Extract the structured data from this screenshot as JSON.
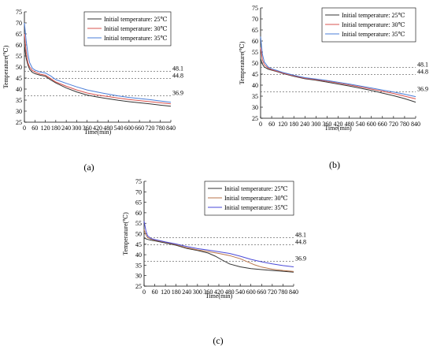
{
  "chart_data": [
    {
      "type": "line",
      "panel_label": "(a)",
      "xlabel": "Time(min)",
      "ylabel": "Temperature(℃)",
      "xlim": [
        0,
        840
      ],
      "ylim": [
        25,
        75
      ],
      "xticks": [
        0,
        60,
        120,
        180,
        240,
        300,
        360,
        420,
        480,
        540,
        600,
        660,
        720,
        780,
        840
      ],
      "yticks": [
        25,
        30,
        35,
        40,
        45,
        50,
        55,
        60,
        65,
        70,
        75
      ],
      "reference_lines": [
        {
          "y": 48.1,
          "label": "48.1"
        },
        {
          "y": 44.8,
          "label": "44.8"
        },
        {
          "y": 36.9,
          "label": "36.9"
        }
      ],
      "legend_position": "top-right",
      "series": [
        {
          "name": "Initial temperature: 25℃",
          "color": "#333333",
          "x": [
            0,
            10,
            20,
            30,
            45,
            60,
            90,
            120,
            150,
            180,
            240,
            300,
            360,
            420,
            480,
            540,
            600,
            660,
            720,
            780,
            840
          ],
          "y": [
            60,
            54,
            51,
            49,
            47.6,
            47,
            46.3,
            45.8,
            44.2,
            42.8,
            40.5,
            38.7,
            37.3,
            36.4,
            35.6,
            34.9,
            34.3,
            33.8,
            33.3,
            32.7,
            32.2
          ]
        },
        {
          "name": "Initial temperature: 30℃",
          "color": "#d9534f",
          "x": [
            0,
            10,
            20,
            30,
            45,
            60,
            90,
            120,
            150,
            180,
            240,
            300,
            360,
            420,
            480,
            540,
            600,
            660,
            720,
            780,
            840
          ],
          "y": [
            65,
            57,
            52,
            50,
            48.5,
            47.8,
            46.8,
            46.3,
            44.8,
            43.2,
            41.3,
            39.6,
            38.2,
            37.3,
            36.6,
            35.9,
            35.3,
            34.8,
            34.3,
            33.8,
            33.3
          ]
        },
        {
          "name": "Initial temperature: 35℃",
          "color": "#4a7dd8",
          "x": [
            0,
            10,
            20,
            30,
            45,
            60,
            90,
            120,
            150,
            180,
            240,
            300,
            360,
            420,
            480,
            540,
            600,
            660,
            720,
            780,
            840
          ],
          "y": [
            70,
            62,
            56,
            52,
            49.5,
            48.6,
            47.7,
            47.3,
            46,
            44.3,
            42.6,
            41,
            39.6,
            38.6,
            37.7,
            36.9,
            36.2,
            35.7,
            35.2,
            34.6,
            34
          ]
        }
      ]
    },
    {
      "type": "line",
      "panel_label": "(b)",
      "xlabel": "Time(min)",
      "ylabel": "Temperature(℃)",
      "xlim": [
        0,
        840
      ],
      "ylim": [
        25,
        75
      ],
      "xticks": [
        0,
        60,
        120,
        180,
        240,
        300,
        360,
        420,
        480,
        540,
        600,
        660,
        720,
        780,
        840
      ],
      "yticks": [
        25,
        30,
        35,
        40,
        45,
        50,
        55,
        60,
        65,
        70,
        75
      ],
      "reference_lines": [
        {
          "y": 48.1,
          "label": "48.1"
        },
        {
          "y": 44.8,
          "label": "44.8"
        },
        {
          "y": 36.9,
          "label": "36.9"
        }
      ],
      "legend_position": "top-right",
      "series": [
        {
          "name": "Initial temperature: 25℃",
          "color": "#333333",
          "x": [
            0,
            10,
            20,
            40,
            60,
            90,
            120,
            180,
            240,
            300,
            360,
            420,
            480,
            540,
            600,
            660,
            720,
            780,
            840
          ],
          "y": [
            52,
            49.5,
            48.2,
            47.3,
            46.8,
            46.1,
            45.3,
            44,
            42.9,
            42.2,
            41.4,
            40.5,
            39.6,
            38.6,
            37.6,
            36.4,
            35.2,
            33.9,
            32.3
          ]
        },
        {
          "name": "Initial temperature: 30℃",
          "color": "#d9534f",
          "x": [
            0,
            10,
            20,
            40,
            60,
            90,
            120,
            180,
            240,
            300,
            360,
            420,
            480,
            540,
            600,
            660,
            720,
            780,
            840
          ],
          "y": [
            57,
            51.5,
            49.3,
            47.8,
            47,
            46.3,
            45.5,
            44.2,
            43.1,
            42.5,
            41.8,
            41,
            40.1,
            39.2,
            38.2,
            37.2,
            36.2,
            35,
            33.8
          ]
        },
        {
          "name": "Initial temperature: 35℃",
          "color": "#4a7dd8",
          "x": [
            0,
            10,
            20,
            40,
            60,
            90,
            120,
            180,
            240,
            300,
            360,
            420,
            480,
            540,
            600,
            660,
            720,
            780,
            840
          ],
          "y": [
            62,
            54,
            50.5,
            48.3,
            47.4,
            46.6,
            45.8,
            44.5,
            43.4,
            42.8,
            42.1,
            41.3,
            40.5,
            39.6,
            38.7,
            37.8,
            36.9,
            35.9,
            34.8
          ]
        }
      ]
    },
    {
      "type": "line",
      "panel_label": "(c)",
      "xlabel": "Time(min)",
      "ylabel": "Temperature(℃)",
      "xlim": [
        0,
        840
      ],
      "ylim": [
        25,
        75
      ],
      "xticks": [
        0,
        60,
        120,
        180,
        240,
        300,
        360,
        420,
        480,
        540,
        600,
        660,
        720,
        780,
        840
      ],
      "yticks": [
        25,
        30,
        35,
        40,
        45,
        50,
        55,
        60,
        65,
        70,
        75
      ],
      "reference_lines": [
        {
          "y": 48.1,
          "label": "48.1"
        },
        {
          "y": 44.8,
          "label": "44.8"
        },
        {
          "y": 36.9,
          "label": "36.9"
        }
      ],
      "legend_position": "top-right",
      "series": [
        {
          "name": "Initial temperature: 25℃",
          "color": "#333333",
          "x": [
            0,
            10,
            20,
            40,
            60,
            120,
            180,
            240,
            300,
            360,
            400,
            440,
            480,
            540,
            600,
            660,
            720,
            780,
            840
          ],
          "y": [
            48,
            47.6,
            47.3,
            46.9,
            46.6,
            45.6,
            44.5,
            43,
            42,
            40.8,
            39.3,
            37.4,
            35.6,
            34.2,
            33.4,
            32.9,
            32.5,
            32.1,
            31.7
          ]
        },
        {
          "name": "Initial temperature: 30℃",
          "color": "#b8734a",
          "x": [
            0,
            10,
            20,
            40,
            60,
            120,
            180,
            240,
            300,
            360,
            420,
            480,
            540,
            580,
            620,
            660,
            720,
            780,
            840
          ],
          "y": [
            52,
            49.5,
            48.2,
            47.4,
            46.9,
            45.9,
            44.8,
            43.3,
            42.3,
            41.5,
            40.6,
            39.6,
            38.1,
            36.6,
            35.2,
            34.1,
            33.1,
            32.5,
            32
          ]
        },
        {
          "name": "Initial temperature: 35℃",
          "color": "#4a4ad8",
          "x": [
            0,
            10,
            20,
            40,
            60,
            120,
            180,
            240,
            300,
            360,
            420,
            480,
            540,
            600,
            660,
            720,
            780,
            840
          ],
          "y": [
            56,
            51.5,
            49,
            47.7,
            47.2,
            46.1,
            45.1,
            43.9,
            42.9,
            42.2,
            41.4,
            40.6,
            39.3,
            37.8,
            36.6,
            35.6,
            34.8,
            34.2
          ]
        }
      ]
    }
  ]
}
